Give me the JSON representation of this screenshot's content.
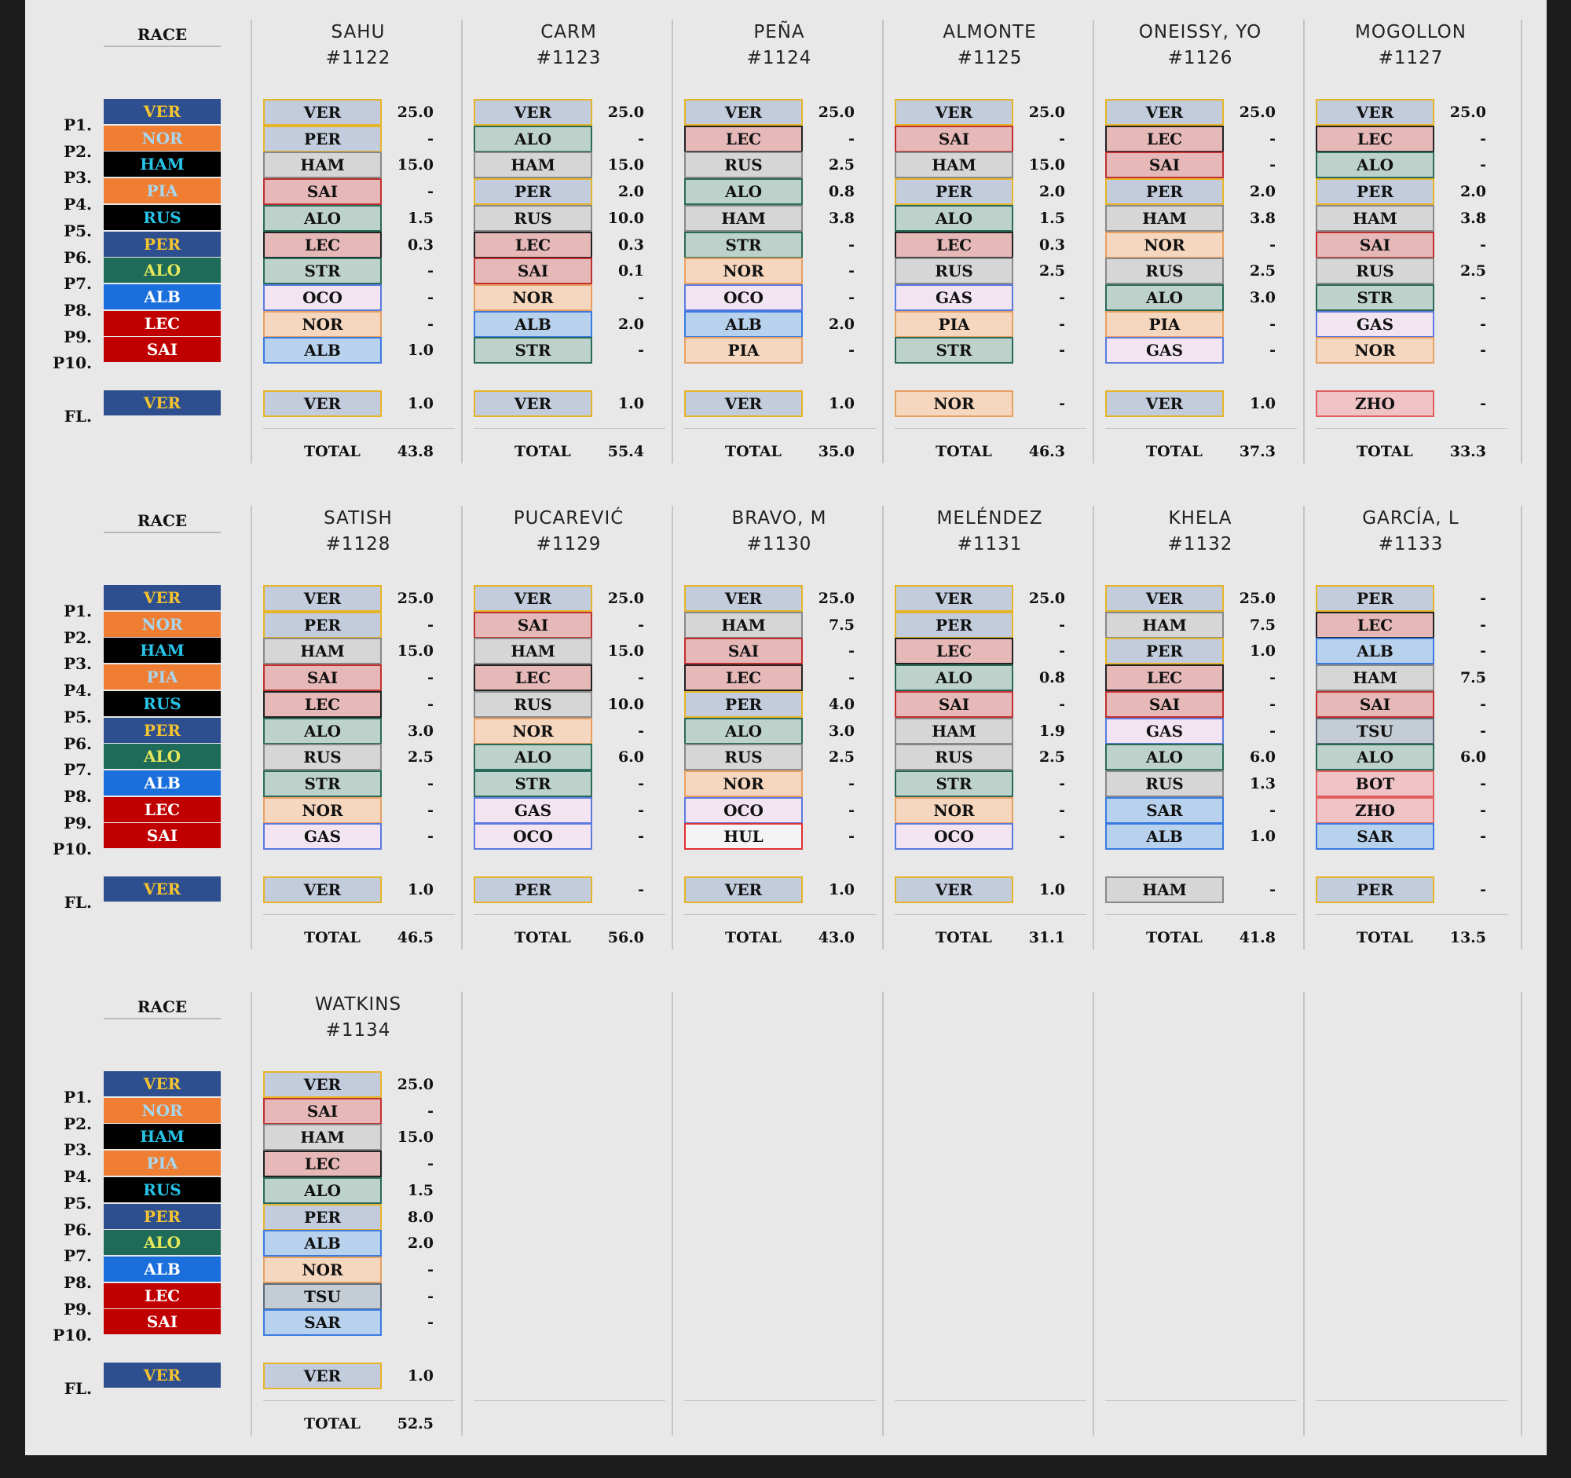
{
  "colors": {
    "VER": "#c2ccdc",
    "PER": "#c2ccdc",
    "LEC": "#e6b8b8",
    "SAI": "#e6b8b8",
    "HAM": "#d6d6d6",
    "RUS": "#d6d6d6",
    "ALO": "#bdd2cb",
    "STR": "#bdd2cb",
    "NOR": "#f5d6be",
    "PIA": "#f5d6be",
    "OCO": "#f2e4f0",
    "GAS": "#f2e4f0",
    "ALB": "#b8d2ee",
    "SAR": "#b8d2ee",
    "HUL": "#f4f4f4",
    "TSU": "#c4ccd4",
    "BOT": "#f0c4c6",
    "ZHO": "#f0c4c6"
  },
  "borders": {
    "VER": "#e6b428",
    "PER": "#e6b428",
    "LEC": "#222222",
    "SAI": "#c03030",
    "HAM": "#888888",
    "RUS": "#888888",
    "ALO": "#2a6a5a",
    "STR": "#2a6a5a",
    "NOR": "#e8a060",
    "PIA": "#e8a060",
    "OCO": "#5a7ae0",
    "GAS": "#5a7ae0",
    "ALB": "#3a7ae0",
    "SAR": "#3a7ae0",
    "HUL": "#e03030",
    "TSU": "#5a6a7a",
    "BOT": "#e06060",
    "ZHO": "#e06060"
  },
  "race": {
    "header": "RACE",
    "position_labels": [
      "P1.",
      "P2.",
      "P3.",
      "P4.",
      "P5.",
      "P6.",
      "P7.",
      "P8.",
      "P9.",
      "P10."
    ],
    "fl_label": "FL.",
    "results": [
      {
        "code": "VER",
        "bg": "#2e4f8f",
        "fg": "#f2c230"
      },
      {
        "code": "NOR",
        "bg": "#ef7d32",
        "fg": "#a7d6ee"
      },
      {
        "code": "HAM",
        "bg": "#000000",
        "fg": "#27c4e8"
      },
      {
        "code": "PIA",
        "bg": "#ef7d32",
        "fg": "#a7d6ee"
      },
      {
        "code": "RUS",
        "bg": "#000000",
        "fg": "#27c4e8"
      },
      {
        "code": "PER",
        "bg": "#2e4f8f",
        "fg": "#f2c230"
      },
      {
        "code": "ALO",
        "bg": "#1e6b5a",
        "fg": "#e6e85a"
      },
      {
        "code": "ALB",
        "bg": "#1a6fdc",
        "fg": "#ffffff"
      },
      {
        "code": "LEC",
        "bg": "#c00000",
        "fg": "#ffffff"
      },
      {
        "code": "SAI",
        "bg": "#c00000",
        "fg": "#ffffff"
      }
    ],
    "fastest_lap": {
      "code": "VER",
      "bg": "#2e4f8f",
      "fg": "#f2c230"
    }
  },
  "total_label": "TOTAL",
  "participants": [
    {
      "name": "SAHU",
      "id": "#1122",
      "picks": [
        "VER",
        "PER",
        "HAM",
        "SAI",
        "ALO",
        "LEC",
        "STR",
        "OCO",
        "NOR",
        "ALB"
      ],
      "points": [
        "25.0",
        "-",
        "15.0",
        "-",
        "1.5",
        "0.3",
        "-",
        "-",
        "-",
        "1.0"
      ],
      "fl": "VER",
      "fl_pts": "1.0",
      "total": "43.8"
    },
    {
      "name": "CARM",
      "id": "#1123",
      "picks": [
        "VER",
        "ALO",
        "HAM",
        "PER",
        "RUS",
        "LEC",
        "SAI",
        "NOR",
        "ALB",
        "STR"
      ],
      "points": [
        "25.0",
        "-",
        "15.0",
        "2.0",
        "10.0",
        "0.3",
        "0.1",
        "-",
        "2.0",
        "-"
      ],
      "fl": "VER",
      "fl_pts": "1.0",
      "total": "55.4"
    },
    {
      "name": "PEÑA",
      "id": "#1124",
      "picks": [
        "VER",
        "LEC",
        "RUS",
        "ALO",
        "HAM",
        "STR",
        "NOR",
        "OCO",
        "ALB",
        "PIA"
      ],
      "points": [
        "25.0",
        "-",
        "2.5",
        "0.8",
        "3.8",
        "-",
        "-",
        "-",
        "2.0",
        "-"
      ],
      "fl": "VER",
      "fl_pts": "1.0",
      "total": "35.0"
    },
    {
      "name": "ALMONTE",
      "id": "#1125",
      "picks": [
        "VER",
        "SAI",
        "HAM",
        "PER",
        "ALO",
        "LEC",
        "RUS",
        "GAS",
        "PIA",
        "STR"
      ],
      "points": [
        "25.0",
        "-",
        "15.0",
        "2.0",
        "1.5",
        "0.3",
        "2.5",
        "-",
        "-",
        "-"
      ],
      "fl": "NOR",
      "fl_pts": "-",
      "total": "46.3"
    },
    {
      "name": "ONEISSY, YO",
      "id": "#1126",
      "picks": [
        "VER",
        "LEC",
        "SAI",
        "PER",
        "HAM",
        "NOR",
        "RUS",
        "ALO",
        "PIA",
        "GAS"
      ],
      "points": [
        "25.0",
        "-",
        "-",
        "2.0",
        "3.8",
        "-",
        "2.5",
        "3.0",
        "-",
        "-"
      ],
      "fl": "VER",
      "fl_pts": "1.0",
      "total": "37.3"
    },
    {
      "name": "MOGOLLON",
      "id": "#1127",
      "picks": [
        "VER",
        "LEC",
        "ALO",
        "PER",
        "HAM",
        "SAI",
        "RUS",
        "STR",
        "GAS",
        "NOR"
      ],
      "points": [
        "25.0",
        "-",
        "-",
        "2.0",
        "3.8",
        "-",
        "2.5",
        "-",
        "-",
        "-"
      ],
      "fl": "ZHO",
      "fl_pts": "-",
      "total": "33.3"
    },
    {
      "name": "SATISH",
      "id": "#1128",
      "picks": [
        "VER",
        "PER",
        "HAM",
        "SAI",
        "LEC",
        "ALO",
        "RUS",
        "STR",
        "NOR",
        "GAS"
      ],
      "points": [
        "25.0",
        "-",
        "15.0",
        "-",
        "-",
        "3.0",
        "2.5",
        "-",
        "-",
        "-"
      ],
      "fl": "VER",
      "fl_pts": "1.0",
      "total": "46.5"
    },
    {
      "name": "PUCAREVIĆ",
      "id": "#1129",
      "picks": [
        "VER",
        "SAI",
        "HAM",
        "LEC",
        "RUS",
        "NOR",
        "ALO",
        "STR",
        "GAS",
        "OCO"
      ],
      "points": [
        "25.0",
        "-",
        "15.0",
        "-",
        "10.0",
        "-",
        "6.0",
        "-",
        "-",
        "-"
      ],
      "fl": "PER",
      "fl_pts": "-",
      "total": "56.0"
    },
    {
      "name": "BRAVO, M",
      "id": "#1130",
      "picks": [
        "VER",
        "HAM",
        "SAI",
        "LEC",
        "PER",
        "ALO",
        "RUS",
        "NOR",
        "OCO",
        "HUL"
      ],
      "points": [
        "25.0",
        "7.5",
        "-",
        "-",
        "4.0",
        "3.0",
        "2.5",
        "-",
        "-",
        "-"
      ],
      "fl": "VER",
      "fl_pts": "1.0",
      "total": "43.0"
    },
    {
      "name": "MELÉNDEZ",
      "id": "#1131",
      "picks": [
        "VER",
        "PER",
        "LEC",
        "ALO",
        "SAI",
        "HAM",
        "RUS",
        "STR",
        "NOR",
        "OCO"
      ],
      "points": [
        "25.0",
        "-",
        "-",
        "0.8",
        "-",
        "1.9",
        "2.5",
        "-",
        "-",
        "-"
      ],
      "fl": "VER",
      "fl_pts": "1.0",
      "total": "31.1"
    },
    {
      "name": "KHELA",
      "id": "#1132",
      "picks": [
        "VER",
        "HAM",
        "PER",
        "LEC",
        "SAI",
        "GAS",
        "ALO",
        "RUS",
        "SAR",
        "ALB"
      ],
      "points": [
        "25.0",
        "7.5",
        "1.0",
        "-",
        "-",
        "-",
        "6.0",
        "1.3",
        "-",
        "1.0"
      ],
      "fl": "HAM",
      "fl_pts": "-",
      "total": "41.8"
    },
    {
      "name": "GARCÍA, L",
      "id": "#1133",
      "picks": [
        "PER",
        "LEC",
        "ALB",
        "HAM",
        "SAI",
        "TSU",
        "ALO",
        "BOT",
        "ZHO",
        "SAR"
      ],
      "points": [
        "-",
        "-",
        "-",
        "7.5",
        "-",
        "-",
        "6.0",
        "-",
        "-",
        "-"
      ],
      "fl": "PER",
      "fl_pts": "-",
      "total": "13.5"
    },
    {
      "name": "WATKINS",
      "id": "#1134",
      "picks": [
        "VER",
        "SAI",
        "HAM",
        "LEC",
        "ALO",
        "PER",
        "ALB",
        "NOR",
        "TSU",
        "SAR"
      ],
      "points": [
        "25.0",
        "-",
        "15.0",
        "-",
        "1.5",
        "8.0",
        "2.0",
        "-",
        "-",
        "-"
      ],
      "fl": "VER",
      "fl_pts": "1.0",
      "total": "52.5"
    }
  ]
}
